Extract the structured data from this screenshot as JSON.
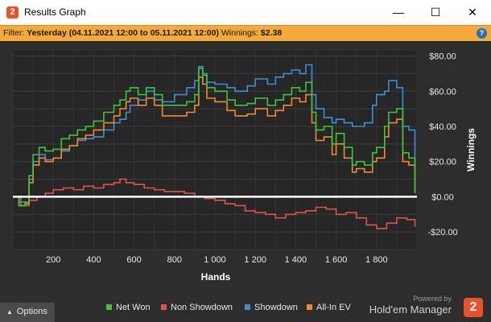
{
  "window": {
    "title": "Results Graph",
    "minimize": "—",
    "maximize": "☐",
    "close": "✕"
  },
  "filter": {
    "prefix": "Filter:",
    "range": "Yesterday (04.11.2021 12:00 to 05.11.2021 12:00)",
    "winnings_label": "Winnings:",
    "winnings_value": "$2.38"
  },
  "bottom": {
    "options_label": "Options",
    "powered_by": "Powered by",
    "brand_name": "Hold'em Manager",
    "brand_logo": "2"
  },
  "chart_data": {
    "type": "line",
    "xlabel": "Hands",
    "ylabel": "Winnings",
    "xlim": [
      0,
      2000
    ],
    "ylim": [
      -30,
      83
    ],
    "xticks": [
      200,
      400,
      600,
      800,
      1000,
      1200,
      1400,
      1600,
      1800
    ],
    "xtick_labels": [
      "200",
      "400",
      "600",
      "800",
      "1 000",
      "1 200",
      "1 400",
      "1 600",
      "1 800"
    ],
    "yticks": [
      80,
      60,
      40,
      20,
      0,
      -20
    ],
    "ytick_labels": [
      "$80.00",
      "$60.00",
      "$40.00",
      "$20.00",
      "$0.00",
      "-$20.00"
    ],
    "grid": true,
    "legend_position": "bottom",
    "series": [
      {
        "name": "Net Won",
        "color": "#3ec43e",
        "x": [
          0,
          30,
          60,
          80,
          100,
          130,
          160,
          200,
          240,
          280,
          320,
          360,
          400,
          450,
          500,
          530,
          560,
          580,
          620,
          660,
          700,
          740,
          800,
          860,
          900,
          920,
          940,
          960,
          1000,
          1060,
          1100,
          1160,
          1200,
          1260,
          1300,
          1340,
          1380,
          1420,
          1450,
          1480,
          1500,
          1540,
          1580,
          1600,
          1640,
          1680,
          1700,
          1740,
          1780,
          1800,
          1840,
          1860,
          1900,
          1930,
          1960,
          1990
        ],
        "y": [
          0,
          -5,
          -3,
          12,
          24,
          28,
          26,
          27,
          33,
          35,
          38,
          40,
          43,
          48,
          52,
          55,
          60,
          62,
          58,
          62,
          58,
          52,
          52,
          54,
          58,
          73,
          69,
          62,
          60,
          55,
          52,
          53,
          56,
          52,
          55,
          58,
          62,
          60,
          65,
          48,
          38,
          40,
          30,
          36,
          28,
          18,
          20,
          18,
          25,
          28,
          40,
          48,
          50,
          25,
          22,
          2
        ]
      },
      {
        "name": "Non Showdown",
        "color": "#e05252",
        "x": [
          0,
          40,
          80,
          120,
          160,
          200,
          250,
          300,
          350,
          400,
          450,
          500,
          530,
          560,
          600,
          650,
          700,
          750,
          800,
          850,
          900,
          950,
          1000,
          1050,
          1100,
          1150,
          1200,
          1250,
          1300,
          1350,
          1400,
          1450,
          1500,
          1550,
          1600,
          1650,
          1700,
          1750,
          1800,
          1850,
          1900,
          1950,
          1990
        ],
        "y": [
          0,
          -5,
          -2,
          0,
          2,
          4,
          5,
          4,
          6,
          5,
          7,
          8,
          10,
          8,
          7,
          5,
          4,
          3,
          3,
          2,
          0,
          -1,
          -2,
          -4,
          -5,
          -8,
          -9,
          -10,
          -12,
          -10,
          -9,
          -8,
          -6,
          -7,
          -10,
          -9,
          -12,
          -16,
          -18,
          -15,
          -12,
          -13,
          -17
        ]
      },
      {
        "name": "Showdown",
        "color": "#3b8fd6",
        "x": [
          0,
          30,
          60,
          80,
          100,
          130,
          160,
          200,
          240,
          280,
          320,
          360,
          400,
          450,
          500,
          530,
          560,
          580,
          620,
          660,
          700,
          740,
          800,
          860,
          900,
          920,
          940,
          960,
          1000,
          1060,
          1100,
          1160,
          1200,
          1260,
          1300,
          1340,
          1380,
          1420,
          1450,
          1480,
          1500,
          1540,
          1580,
          1600,
          1640,
          1680,
          1700,
          1740,
          1780,
          1800,
          1840,
          1860,
          1900,
          1930,
          1960,
          1990
        ],
        "y": [
          0,
          -3,
          -4,
          10,
          20,
          24,
          21,
          22,
          26,
          29,
          32,
          33,
          34,
          38,
          42,
          44,
          48,
          52,
          55,
          60,
          55,
          54,
          58,
          62,
          66,
          74,
          70,
          65,
          64,
          62,
          60,
          63,
          67,
          64,
          68,
          70,
          72,
          70,
          75,
          58,
          50,
          45,
          42,
          44,
          42,
          40,
          40,
          42,
          52,
          58,
          60,
          66,
          62,
          40,
          38,
          15
        ]
      },
      {
        "name": "All-In EV",
        "color": "#ef8a2e",
        "x": [
          0,
          30,
          60,
          80,
          100,
          130,
          160,
          200,
          240,
          280,
          320,
          360,
          400,
          450,
          500,
          530,
          560,
          580,
          620,
          660,
          700,
          740,
          800,
          860,
          900,
          920,
          940,
          960,
          1000,
          1060,
          1100,
          1160,
          1200,
          1260,
          1300,
          1340,
          1380,
          1420,
          1450,
          1480,
          1500,
          1540,
          1580,
          1600,
          1640,
          1680,
          1700,
          1740,
          1780,
          1800,
          1840,
          1860,
          1900,
          1930,
          1960,
          1990
        ],
        "y": [
          0,
          -5,
          -4,
          8,
          18,
          22,
          20,
          22,
          27,
          29,
          33,
          35,
          38,
          42,
          46,
          50,
          54,
          56,
          52,
          56,
          52,
          46,
          46,
          48,
          52,
          68,
          64,
          56,
          54,
          49,
          46,
          47,
          50,
          46,
          49,
          52,
          56,
          54,
          58,
          42,
          32,
          34,
          24,
          30,
          22,
          14,
          16,
          14,
          20,
          22,
          34,
          42,
          44,
          20,
          18,
          3
        ]
      }
    ]
  }
}
